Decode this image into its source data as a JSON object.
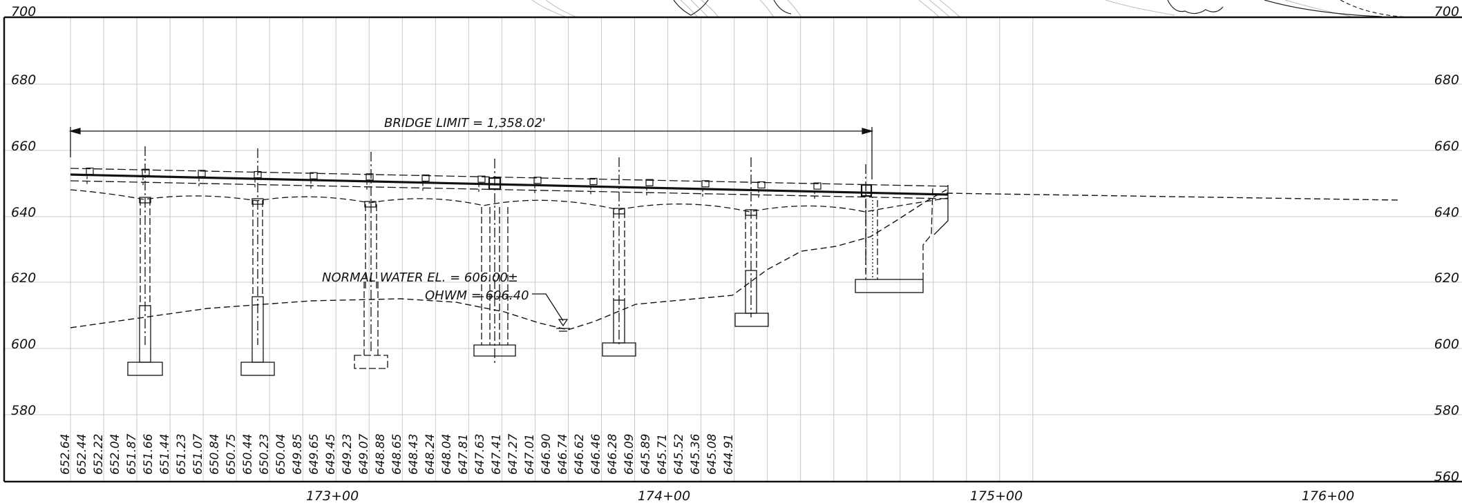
{
  "elevation_labels": [
    "700",
    "680",
    "660",
    "640",
    "620",
    "600",
    "580",
    "560"
  ],
  "station_labels": [
    "173+00",
    "174+00",
    "175+00",
    "176+00"
  ],
  "grade_elevations": [
    "652.64",
    "652.44",
    "652.22",
    "652.04",
    "651.87",
    "651.66",
    "651.44",
    "651.23",
    "651.07",
    "650.84",
    "650.75",
    "650.44",
    "650.23",
    "650.04",
    "649.85",
    "649.65",
    "649.45",
    "649.23",
    "649.07",
    "648.88",
    "648.65",
    "648.43",
    "648.24",
    "648.04",
    "647.81",
    "647.63",
    "647.41",
    "647.27",
    "647.01",
    "646.90",
    "646.74",
    "646.62",
    "646.46",
    "646.28",
    "646.09",
    "645.89",
    "645.71",
    "645.52",
    "645.36",
    "645.08",
    "644.91"
  ],
  "annotations": {
    "bridge_limit": "BRIDGE LIMIT = 1,358.02'",
    "normal_water": "NORMAL WATER EL. = 606.00±",
    "ohwm": "OHWM = 606.40"
  },
  "colors": {
    "linework": "#111111",
    "grid": "#c8c8c8",
    "background": "#ffffff"
  }
}
